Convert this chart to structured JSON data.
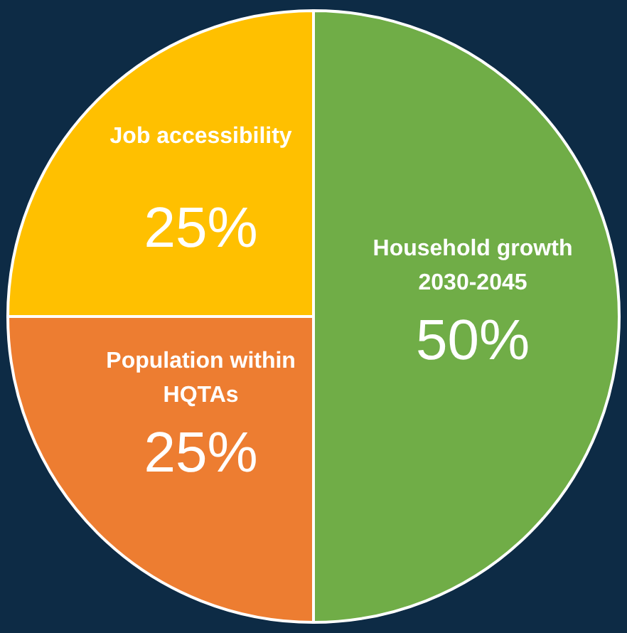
{
  "chart_data": {
    "type": "pie",
    "categories": [
      "Household growth\n2030-2045",
      "Population within\nHQTAs",
      "Job accessibility"
    ],
    "values": [
      50,
      25,
      25
    ],
    "colors": [
      "#70ad47",
      "#ed7d31",
      "#ffc000"
    ],
    "value_labels": [
      "50%",
      "25%",
      "25%"
    ]
  }
}
